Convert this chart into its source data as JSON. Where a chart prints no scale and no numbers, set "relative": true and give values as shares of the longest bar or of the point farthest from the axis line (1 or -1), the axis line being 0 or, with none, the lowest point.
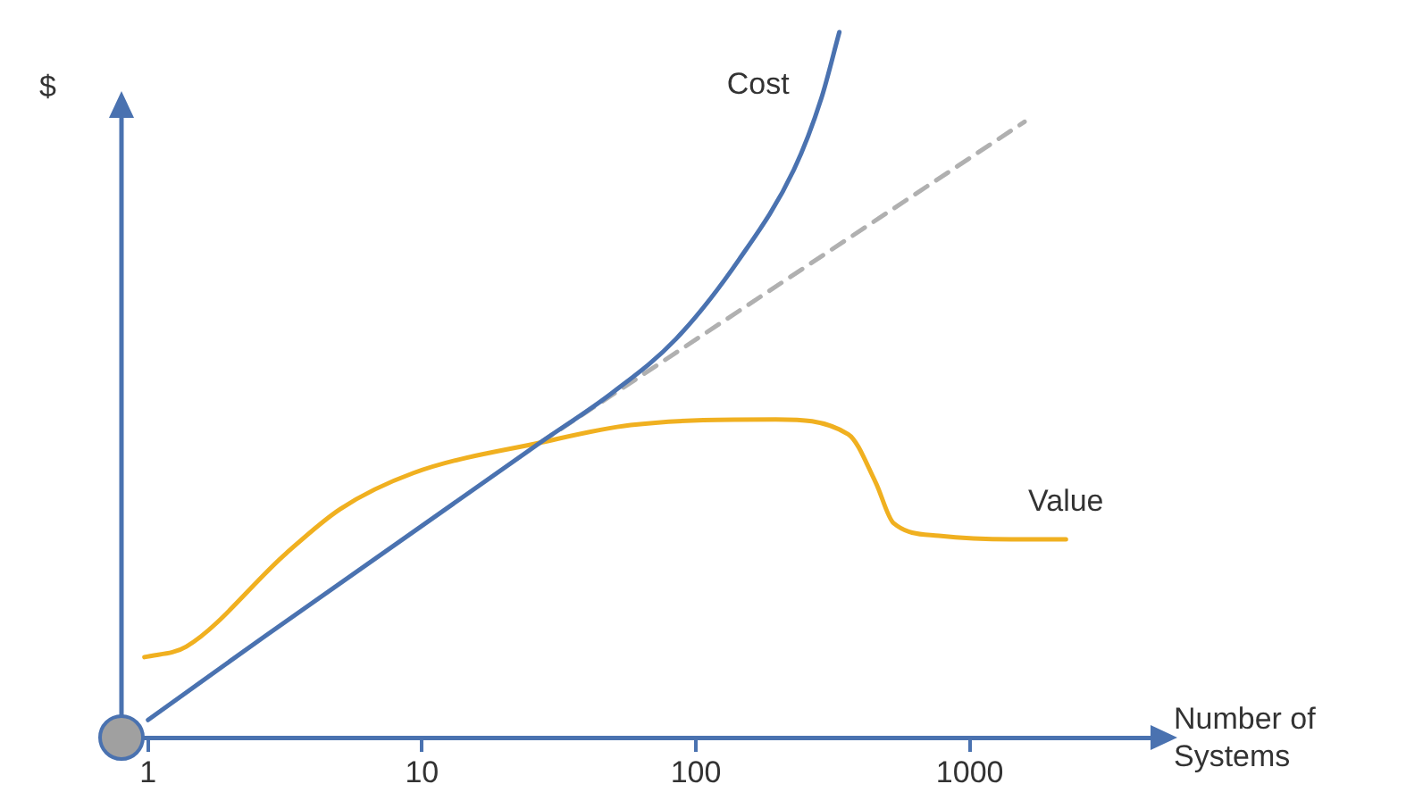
{
  "chart_data": {
    "type": "line",
    "relative": true,
    "log": "x",
    "xlabel": "Number of Systems",
    "ylabel": "$",
    "xlim": [
      0.8,
      5000
    ],
    "xticks": [
      1,
      10,
      100,
      1000
    ],
    "grid": false,
    "legend": false,
    "marker": "none",
    "line_style": "solid",
    "series": [
      {
        "name": "Cost",
        "color": "#4a72b0",
        "x": [
          1,
          2.7,
          27,
          49.6,
          84.6,
          144,
          228,
          287,
          334
        ],
        "values": [
          0.025,
          0.145,
          0.418,
          0.489,
          0.565,
          0.678,
          0.805,
          0.906,
          1
        ]
      },
      {
        "name": "Value",
        "color": "#f0b020",
        "x": [
          0.97,
          1.38,
          3.19,
          5.03,
          9.3,
          27,
          57.8,
          196,
          360,
          453,
          527,
          771,
          1420,
          2244
        ],
        "values": [
          0.114,
          0.129,
          0.261,
          0.324,
          0.375,
          0.418,
          0.443,
          0.451,
          0.43,
          0.362,
          0.304,
          0.286,
          0.281,
          0.281
        ]
      },
      {
        "color": "#b0b0b0",
        "line_style": "dashed",
        "x": [
          27,
          1585
        ],
        "values": [
          0.418,
          0.873
        ]
      }
    ]
  }
}
